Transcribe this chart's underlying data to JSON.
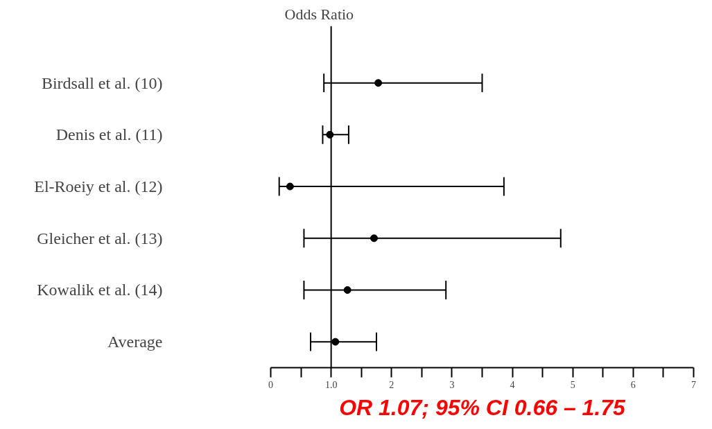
{
  "chart_data": {
    "type": "scatter",
    "orientation": "horizontal",
    "title": "Odds Ratio",
    "categories": [
      "Birdsall et al. (10)",
      "Denis et al. (11)",
      "El-Roeiy et al. (12)",
      "Gleicher et al. (13)",
      "Kowalik et al. (14)",
      "Average"
    ],
    "series": [
      {
        "color": "#000000",
        "values": [
          1.78,
          0.98,
          0.32,
          1.71,
          1.27,
          1.07
        ],
        "errors": [
          [
            0.88,
            3.5
          ],
          [
            0.86,
            1.29
          ],
          [
            0.14,
            3.86
          ],
          [
            0.55,
            4.8
          ],
          [
            0.55,
            2.9
          ],
          [
            0.66,
            1.75
          ]
        ]
      }
    ],
    "xlim": [
      0,
      7
    ],
    "xticks": [
      0,
      {
        "value": 0.5,
        "label": null
      },
      {
        "value": 1,
        "label": "1.0"
      },
      {
        "value": 1.5,
        "label": null
      },
      2,
      {
        "value": 2.5,
        "label": null
      },
      3,
      {
        "value": 3.5,
        "label": null
      },
      4,
      {
        "value": 4.5,
        "label": null
      },
      5,
      {
        "value": 5.5,
        "label": null
      },
      6,
      {
        "value": 6.5,
        "label": null
      },
      7
    ],
    "ref_lines": [
      {
        "axis": "x",
        "value": 1,
        "color": "#000000"
      }
    ],
    "marker": "circle",
    "grid": false,
    "annotations": [
      "OR 1.07; 95% CI 0.66 – 1.75"
    ]
  }
}
